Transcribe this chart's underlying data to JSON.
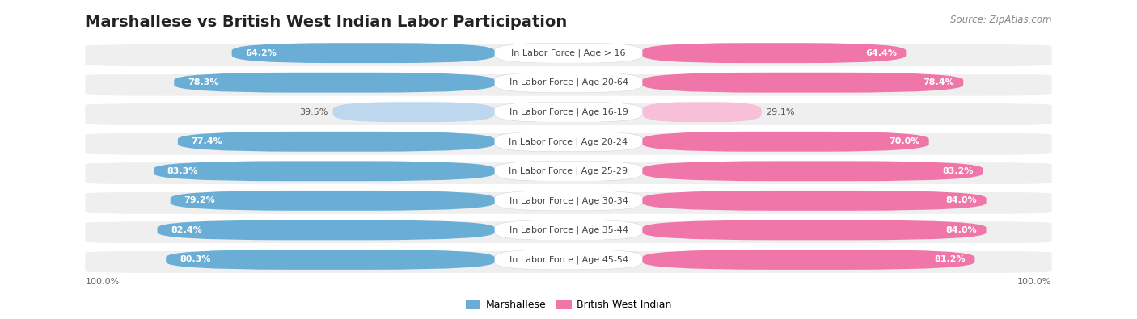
{
  "title": "Marshallese vs British West Indian Labor Participation",
  "source": "Source: ZipAtlas.com",
  "categories": [
    "In Labor Force | Age > 16",
    "In Labor Force | Age 20-64",
    "In Labor Force | Age 16-19",
    "In Labor Force | Age 20-24",
    "In Labor Force | Age 25-29",
    "In Labor Force | Age 30-34",
    "In Labor Force | Age 35-44",
    "In Labor Force | Age 45-54"
  ],
  "marshallese": [
    64.2,
    78.3,
    39.5,
    77.4,
    83.3,
    79.2,
    82.4,
    80.3
  ],
  "british_west_indian": [
    64.4,
    78.4,
    29.1,
    70.0,
    83.2,
    84.0,
    84.0,
    81.2
  ],
  "marshallese_color": "#6AAED6",
  "marshallese_light_color": "#BDD7EE",
  "british_west_indian_color": "#F075A8",
  "british_west_indian_light_color": "#F8C0D8",
  "row_bg_color": "#EFEFEF",
  "max_value": 100.0,
  "title_fontsize": 14,
  "cat_fontsize": 8,
  "value_fontsize": 8,
  "legend_fontsize": 9,
  "source_fontsize": 8.5,
  "axis_label_fontsize": 8
}
